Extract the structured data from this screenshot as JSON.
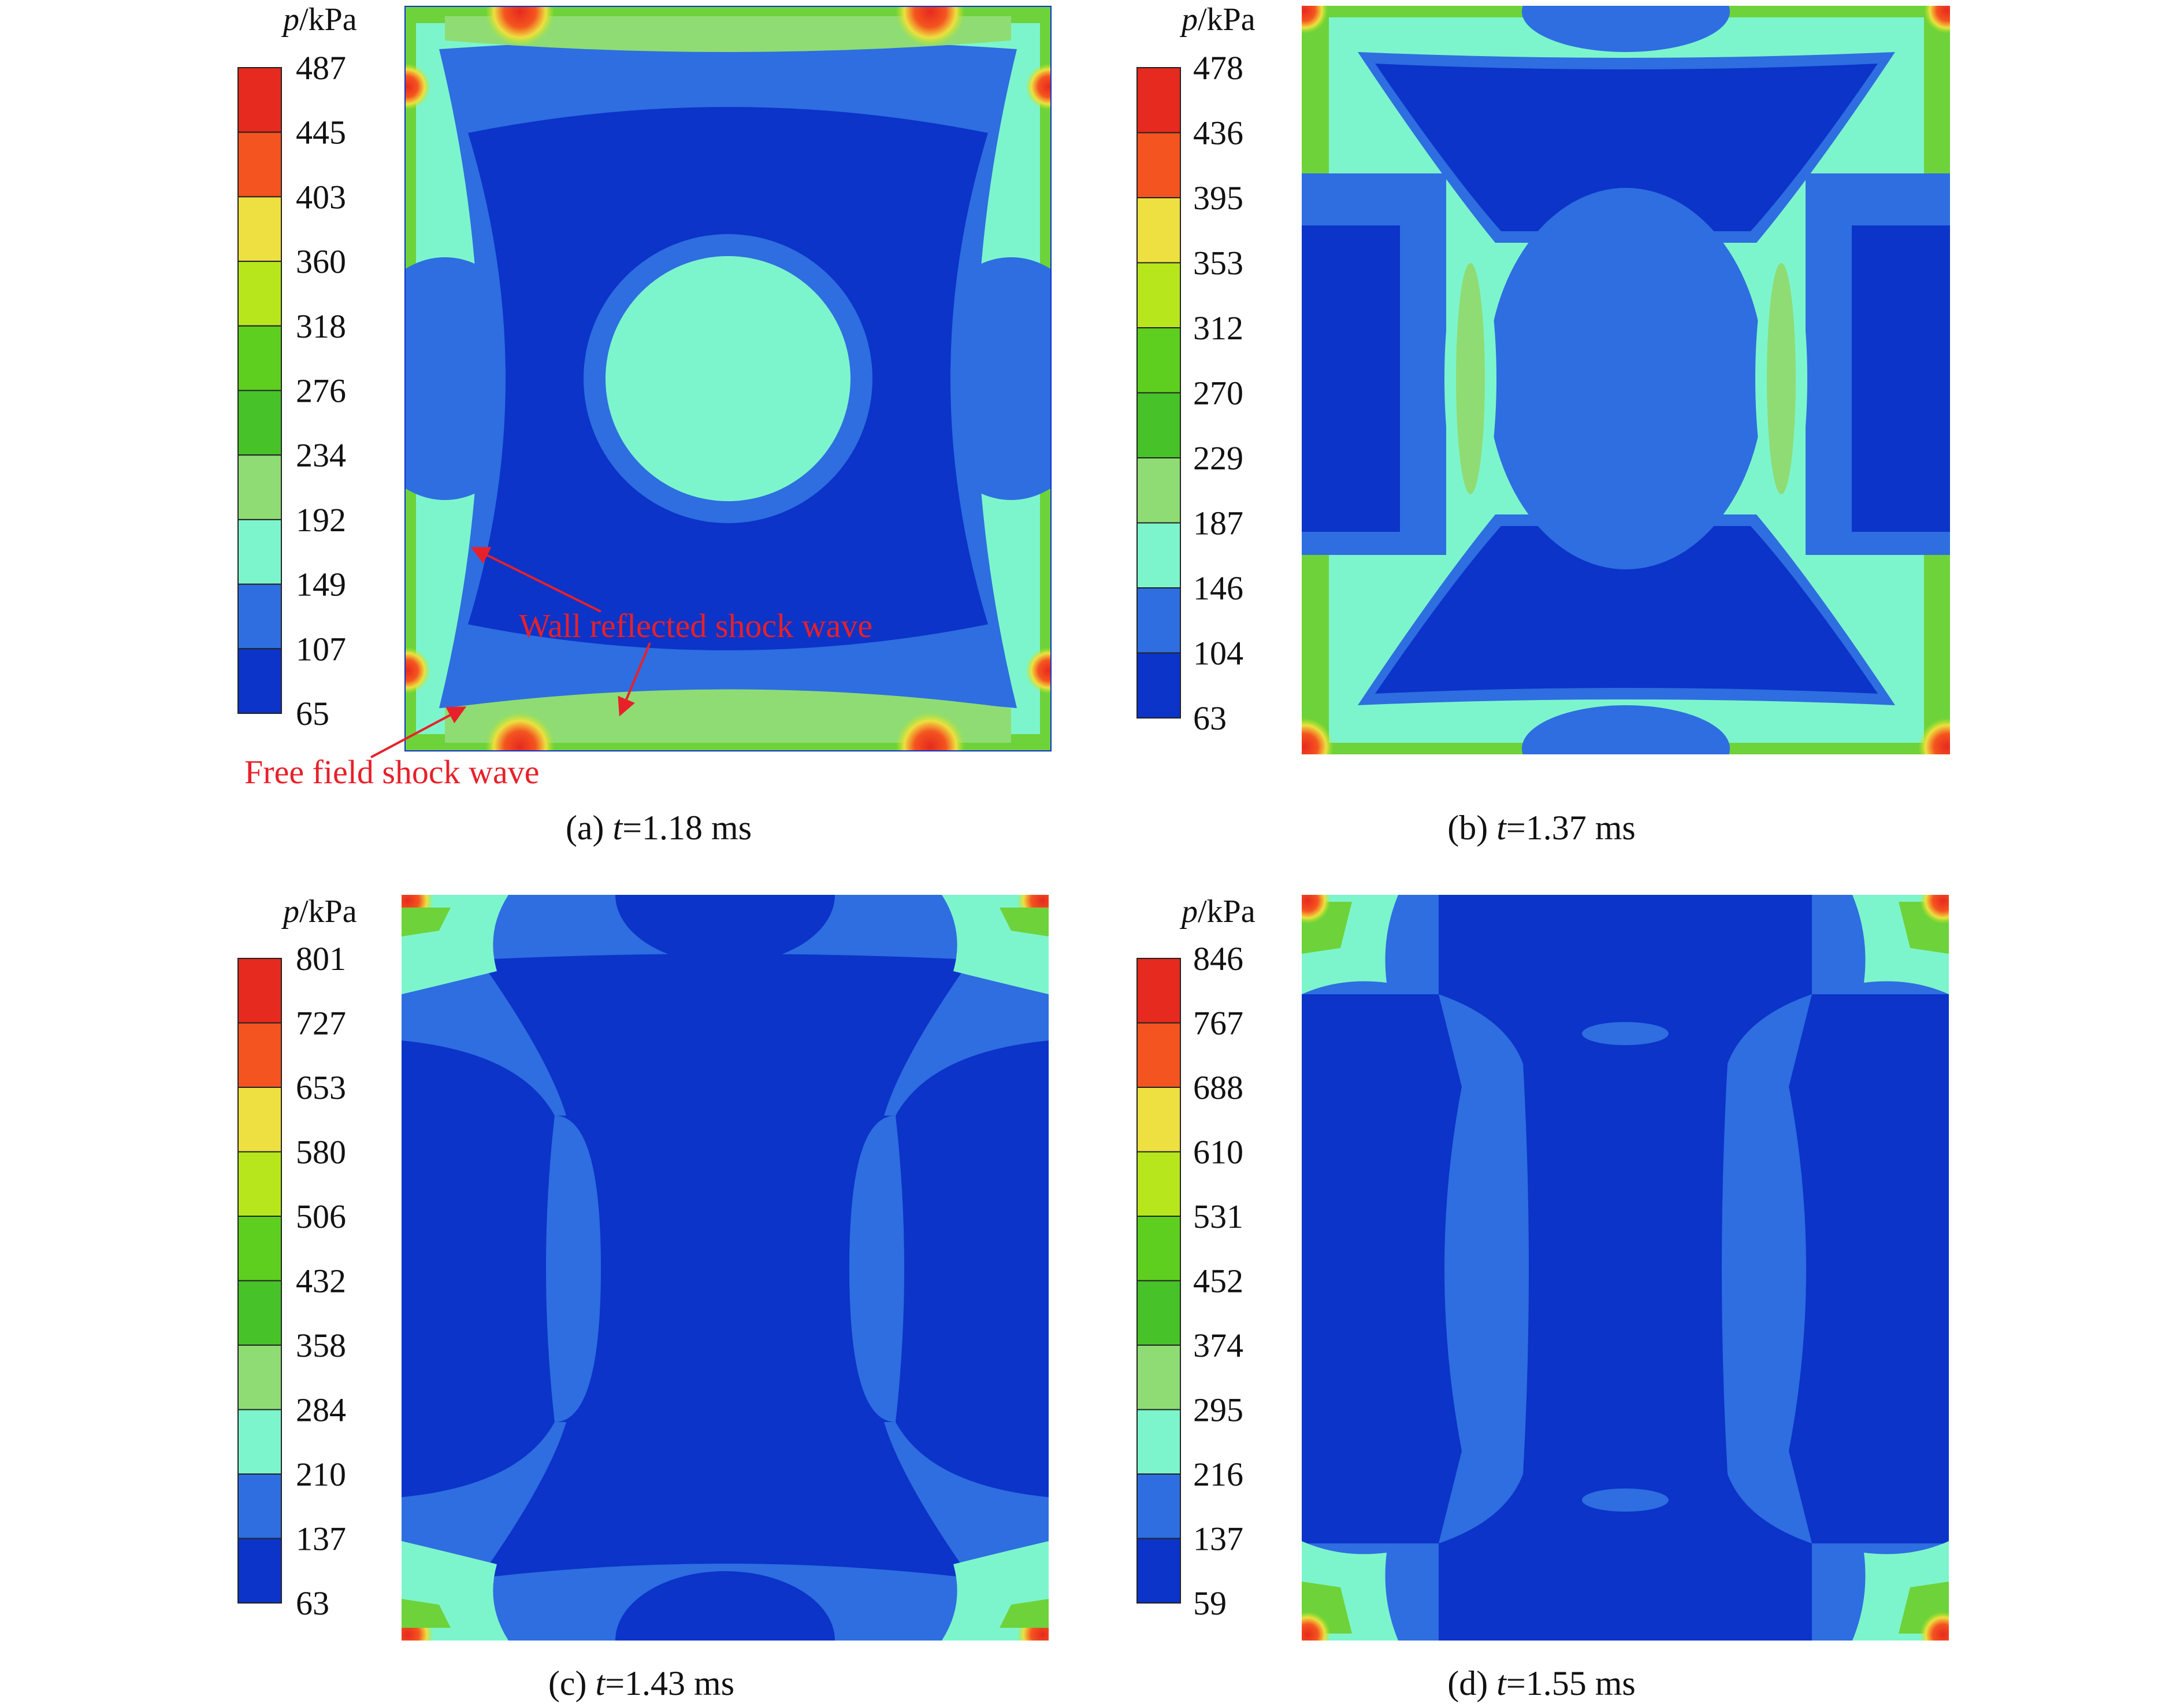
{
  "panels": [
    {
      "id": "a",
      "caption_prefix": "(a) ",
      "caption_var": "t",
      "caption_value": "=1.18 ms",
      "unit_var": "p",
      "unit_text": "/kPa",
      "ticks": [
        "487",
        "445",
        "403",
        "360",
        "318",
        "276",
        "234",
        "192",
        "149",
        "107",
        "65"
      ]
    },
    {
      "id": "b",
      "caption_prefix": "(b) ",
      "caption_var": "t",
      "caption_value": "=1.37 ms",
      "unit_var": "p",
      "unit_text": "/kPa",
      "ticks": [
        "478",
        "436",
        "395",
        "353",
        "312",
        "270",
        "229",
        "187",
        "146",
        "104",
        "63"
      ]
    },
    {
      "id": "c",
      "caption_prefix": "(c) ",
      "caption_var": "t",
      "caption_value": "=1.43 ms",
      "unit_var": "p",
      "unit_text": "/kPa",
      "ticks": [
        "801",
        "727",
        "653",
        "580",
        "506",
        "432",
        "358",
        "284",
        "210",
        "137",
        "63"
      ]
    },
    {
      "id": "d",
      "caption_prefix": "(d) ",
      "caption_var": "t",
      "caption_value": "=1.55 ms",
      "unit_var": "p",
      "unit_text": "/kPa",
      "ticks": [
        "846",
        "767",
        "688",
        "610",
        "531",
        "452",
        "374",
        "295",
        "216",
        "137",
        "59"
      ]
    }
  ],
  "annotations": {
    "wall_reflected": "Wall reflected shock wave",
    "free_field": "Free field shock wave"
  },
  "colors": {
    "legend_bands_top_to_bottom": [
      "#e62a1f",
      "#f4541f",
      "#eee040",
      "#b8e61c",
      "#5ecf1e",
      "#47c228",
      "#8fdc74",
      "#7df5cc",
      "#2e6ee0",
      "#0c34c9"
    ],
    "contour_dark": "#0c34c9",
    "contour_blue": "#2e6ee0",
    "contour_cyan": "#7df5cc",
    "contour_green": "#6ed23a",
    "contour_lightgreen": "#8fdc74",
    "contour_yellowgreen": "#b8e61c",
    "contour_red": "#e62a1f",
    "annotation_red": "#e8202a"
  }
}
